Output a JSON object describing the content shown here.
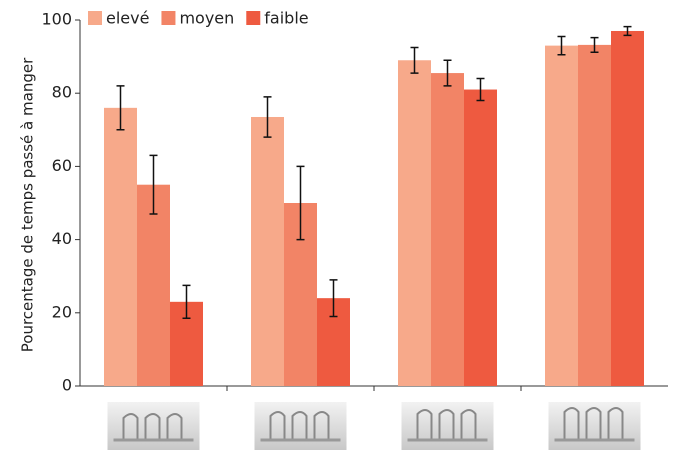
{
  "chart_data": {
    "type": "bar",
    "ylabel": "Pourcentage de temps passé à manger",
    "categories": [
      null,
      null,
      null,
      null
    ],
    "series": [
      {
        "name": "elevé",
        "color": "#f7a98a",
        "values": [
          76,
          73.5,
          89,
          93
        ],
        "errors": [
          6,
          5.5,
          3.5,
          2.5
        ]
      },
      {
        "name": "moyen",
        "color": "#f28466",
        "values": [
          55,
          50,
          85.5,
          93.2
        ],
        "errors": [
          8,
          10,
          3.5,
          2
        ]
      },
      {
        "name": "faible",
        "color": "#ee5a40",
        "values": [
          23,
          24,
          81,
          97
        ],
        "errors": [
          4.5,
          5,
          3,
          1.2
        ]
      }
    ],
    "ylim": [
      0,
      100
    ],
    "yticks": [
      0,
      20,
      40,
      60,
      80,
      100
    ]
  }
}
